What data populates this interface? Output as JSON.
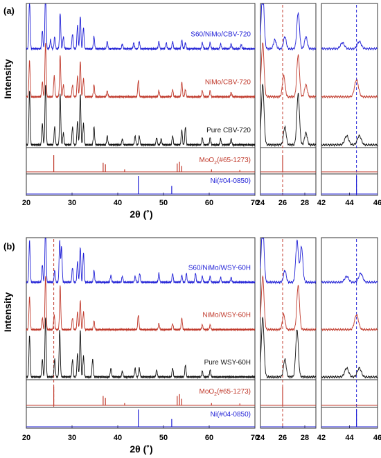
{
  "chart_data": [
    {
      "panel_label": "(a)",
      "type": "line",
      "ylabel": "Intensity",
      "xlabel_main": "2θ (˚)",
      "main_xlim": [
        20,
        70
      ],
      "main_ticks": [
        "20",
        "30",
        "40",
        "50",
        "60",
        "70"
      ],
      "zoom1_xlim": [
        24,
        29
      ],
      "zoom1_ticks": [
        "24",
        "26",
        "28"
      ],
      "zoom2_xlim": [
        42,
        46
      ],
      "zoom2_ticks": [
        "42",
        "44",
        "46"
      ],
      "series": [
        {
          "name": "S60/NiMo/CBV-720",
          "color": "#1f1fd6",
          "peaks": [
            [
              20.7,
              0.85
            ],
            [
              23.5,
              0.3
            ],
            [
              24.2,
              1.0
            ],
            [
              25.3,
              0.15
            ],
            [
              26.2,
              0.2
            ],
            [
              27.4,
              0.6
            ],
            [
              28.1,
              0.2
            ],
            [
              30.1,
              0.25
            ],
            [
              31.2,
              0.4
            ],
            [
              31.8,
              0.55
            ],
            [
              32.5,
              0.35
            ],
            [
              34.8,
              0.2
            ],
            [
              37.7,
              0.12
            ],
            [
              41.0,
              0.08
            ],
            [
              43.5,
              0.1
            ],
            [
              44.7,
              0.12
            ],
            [
              49.0,
              0.12
            ],
            [
              50.6,
              0.1
            ],
            [
              52.0,
              0.12
            ],
            [
              54.0,
              0.15
            ],
            [
              54.8,
              0.1
            ],
            [
              58.5,
              0.1
            ],
            [
              60.2,
              0.1
            ],
            [
              62.5,
              0.08
            ],
            [
              64.8,
              0.08
            ],
            [
              67.0,
              0.07
            ]
          ]
        },
        {
          "name": "NiMo/CBV-720",
          "color": "#c0392b",
          "peaks": [
            [
              20.7,
              0.6
            ],
            [
              23.5,
              0.25
            ],
            [
              24.2,
              0.9
            ],
            [
              26.1,
              0.35
            ],
            [
              27.4,
              0.7
            ],
            [
              28.1,
              0.2
            ],
            [
              30.1,
              0.2
            ],
            [
              31.2,
              0.35
            ],
            [
              31.8,
              0.6
            ],
            [
              32.5,
              0.3
            ],
            [
              34.8,
              0.2
            ],
            [
              37.7,
              0.1
            ],
            [
              44.5,
              0.28
            ],
            [
              49.0,
              0.1
            ],
            [
              52.0,
              0.12
            ],
            [
              54.0,
              0.25
            ],
            [
              54.8,
              0.12
            ],
            [
              58.5,
              0.1
            ],
            [
              60.2,
              0.1
            ],
            [
              64.8,
              0.07
            ]
          ]
        },
        {
          "name": "Pure CBV-720",
          "color": "#111111",
          "peaks": [
            [
              20.7,
              0.9
            ],
            [
              23.5,
              0.35
            ],
            [
              24.2,
              1.0
            ],
            [
              26.2,
              0.3
            ],
            [
              27.4,
              0.85
            ],
            [
              28.1,
              0.2
            ],
            [
              30.1,
              0.3
            ],
            [
              31.2,
              0.4
            ],
            [
              31.8,
              0.85
            ],
            [
              32.5,
              0.35
            ],
            [
              34.8,
              0.3
            ],
            [
              37.7,
              0.15
            ],
            [
              41.0,
              0.1
            ],
            [
              43.8,
              0.15
            ],
            [
              44.7,
              0.15
            ],
            [
              48.5,
              0.12
            ],
            [
              49.5,
              0.1
            ],
            [
              52.0,
              0.15
            ],
            [
              54.0,
              0.25
            ],
            [
              54.8,
              0.3
            ],
            [
              58.5,
              0.12
            ],
            [
              60.2,
              0.12
            ],
            [
              62.5,
              0.1
            ],
            [
              64.8,
              0.1
            ]
          ]
        }
      ],
      "references": [
        {
          "name": "MoO2(#65-1273)",
          "label_main": "MoO",
          "label_sub": "2",
          "label_rest": "(#65-1273)",
          "color": "#c0392b",
          "sticks": [
            [
              26.0,
              1.0
            ],
            [
              36.8,
              0.55
            ],
            [
              37.3,
              0.45
            ],
            [
              41.5,
              0.15
            ],
            [
              53.0,
              0.5
            ],
            [
              53.5,
              0.6
            ],
            [
              54.0,
              0.35
            ],
            [
              60.5,
              0.15
            ],
            [
              66.7,
              0.12
            ]
          ]
        },
        {
          "name": "Ni(#04-0850)",
          "label_main": "Ni(#04-0850)",
          "label_sub": "",
          "label_rest": "",
          "color": "#1f1fd6",
          "sticks": [
            [
              44.5,
              1.0
            ],
            [
              51.8,
              0.45
            ]
          ]
        }
      ]
    },
    {
      "panel_label": "(b)",
      "type": "line",
      "ylabel": "Intensity",
      "xlabel_main": "2θ (˚)",
      "main_xlim": [
        20,
        70
      ],
      "main_ticks": [
        "20",
        "30",
        "40",
        "50",
        "60",
        "70"
      ],
      "zoom1_xlim": [
        24,
        29
      ],
      "zoom1_ticks": [
        "24",
        "26",
        "28"
      ],
      "zoom2_xlim": [
        42,
        46
      ],
      "zoom2_ticks": [
        "42",
        "44",
        "46"
      ],
      "series": [
        {
          "name": "S60/NiMo/WSY-60H",
          "color": "#1f1fd6",
          "peaks": [
            [
              20.7,
              0.7
            ],
            [
              23.5,
              0.3
            ],
            [
              24.2,
              1.0
            ],
            [
              26.2,
              0.2
            ],
            [
              27.3,
              0.7
            ],
            [
              27.7,
              0.6
            ],
            [
              30.1,
              0.25
            ],
            [
              31.2,
              0.35
            ],
            [
              31.8,
              0.6
            ],
            [
              32.5,
              0.5
            ],
            [
              34.8,
              0.2
            ],
            [
              38.5,
              0.12
            ],
            [
              41.0,
              0.1
            ],
            [
              43.8,
              0.1
            ],
            [
              44.8,
              0.15
            ],
            [
              49.0,
              0.15
            ],
            [
              52.0,
              0.15
            ],
            [
              54.0,
              0.12
            ],
            [
              55.0,
              0.15
            ],
            [
              57.0,
              0.15
            ],
            [
              58.5,
              0.1
            ],
            [
              60.2,
              0.1
            ],
            [
              62.5,
              0.08
            ],
            [
              64.8,
              0.08
            ]
          ]
        },
        {
          "name": "NiMo/WSY-60H",
          "color": "#c0392b",
          "peaks": [
            [
              20.7,
              0.55
            ],
            [
              23.5,
              0.2
            ],
            [
              24.2,
              0.9
            ],
            [
              26.1,
              0.25
            ],
            [
              27.4,
              0.75
            ],
            [
              30.1,
              0.2
            ],
            [
              31.2,
              0.3
            ],
            [
              31.8,
              0.5
            ],
            [
              32.5,
              0.3
            ],
            [
              34.8,
              0.15
            ],
            [
              44.5,
              0.25
            ],
            [
              49.0,
              0.1
            ],
            [
              52.0,
              0.1
            ],
            [
              54.0,
              0.2
            ],
            [
              58.5,
              0.08
            ],
            [
              60.2,
              0.08
            ]
          ]
        },
        {
          "name": "Pure WSY-60H",
          "color": "#111111",
          "peaks": [
            [
              20.7,
              0.7
            ],
            [
              23.5,
              0.3
            ],
            [
              24.2,
              1.0
            ],
            [
              26.2,
              0.3
            ],
            [
              27.3,
              0.8
            ],
            [
              30.1,
              0.3
            ],
            [
              31.2,
              0.4
            ],
            [
              31.8,
              0.8
            ],
            [
              32.5,
              0.35
            ],
            [
              34.5,
              0.3
            ],
            [
              38.5,
              0.15
            ],
            [
              41.0,
              0.1
            ],
            [
              43.8,
              0.15
            ],
            [
              44.7,
              0.15
            ],
            [
              48.5,
              0.12
            ],
            [
              52.0,
              0.15
            ],
            [
              54.8,
              0.2
            ],
            [
              58.5,
              0.1
            ],
            [
              60.2,
              0.12
            ]
          ]
        }
      ],
      "references": [
        {
          "name": "MoO2(#65-1273)",
          "label_main": "MoO",
          "label_sub": "2",
          "label_rest": "(#65-1273)",
          "color": "#c0392b",
          "sticks": [
            [
              26.0,
              1.0
            ],
            [
              36.8,
              0.5
            ],
            [
              37.3,
              0.4
            ],
            [
              41.5,
              0.12
            ],
            [
              53.0,
              0.5
            ],
            [
              53.5,
              0.6
            ],
            [
              54.0,
              0.35
            ],
            [
              60.5,
              0.12
            ],
            [
              66.7,
              0.1
            ]
          ]
        },
        {
          "name": "Ni(#04-0850)",
          "label_main": "Ni(#04-0850)",
          "label_sub": "",
          "label_rest": "",
          "color": "#1f1fd6",
          "sticks": [
            [
              44.5,
              1.0
            ],
            [
              51.8,
              0.45
            ]
          ]
        }
      ]
    }
  ]
}
